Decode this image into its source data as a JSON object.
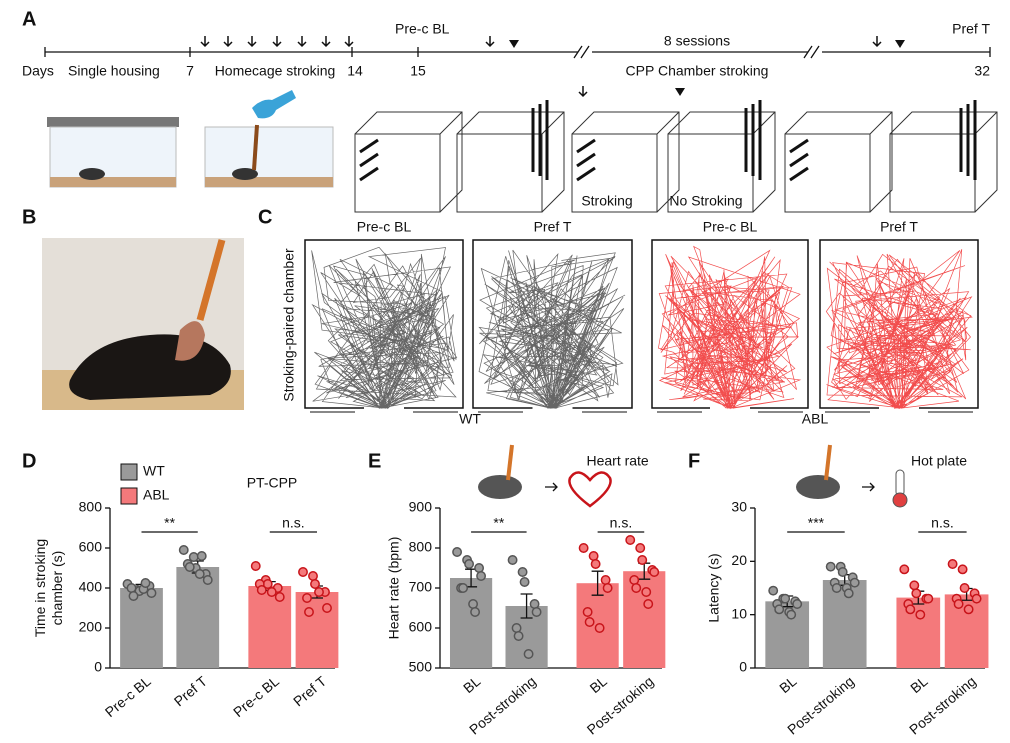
{
  "panel_labels": [
    "A",
    "B",
    "C",
    "D",
    "E",
    "F"
  ],
  "timeline": {
    "days": "Days",
    "single_housing": "Single housing",
    "day7": "7",
    "homecage": "Homecage stroking",
    "day14": "14",
    "prec": "Pre-c BL",
    "day15": "15",
    "sessions": "8 sessions",
    "cpp": "CPP Chamber stroking",
    "preft": "Pref T",
    "day32": "32",
    "stroking": "Stroking",
    "no_stroking": "No Stroking"
  },
  "trajectories": {
    "ylabel": "Stroking-paired chamber",
    "titles": [
      "Pre-c BL",
      "Pref T",
      "Pre-c BL",
      "Pref T"
    ],
    "groups": [
      "WT",
      "ABL"
    ],
    "colors": [
      "#333333",
      "#ee1111"
    ]
  },
  "chart_data": [
    {
      "type": "bar",
      "ylabel": [
        "Time in stroking",
        "chamber (s)"
      ],
      "annotation": "PT-CPP",
      "legend": [
        {
          "name": "WT",
          "color": "#9a9a9a"
        },
        {
          "name": "ABL",
          "color": "#f4797b"
        }
      ],
      "categories": [
        "Pre-c BL",
        "Pref T",
        "Pre-c BL",
        "Pref T"
      ],
      "values": [
        400,
        505,
        410,
        380
      ],
      "errors": [
        18,
        30,
        22,
        30
      ],
      "colors": [
        "#9a9a9a",
        "#9a9a9a",
        "#f4797b",
        "#f4797b"
      ],
      "edge_colors": [
        "#555555",
        "#555555",
        "#c8141a",
        "#c8141a"
      ],
      "points": [
        [
          420,
          390,
          385,
          410,
          375,
          400,
          360,
          395,
          425
        ],
        [
          590,
          555,
          500,
          470,
          440,
          520,
          505,
          470,
          560
        ],
        [
          510,
          440,
          420,
          400,
          355,
          420,
          390,
          380
        ],
        [
          480,
          460,
          420,
          380,
          300,
          350,
          280,
          380
        ]
      ],
      "significance": [
        "**",
        "n.s."
      ],
      "ylim": [
        0,
        800
      ],
      "yticks": [
        0,
        200,
        400,
        600,
        800
      ]
    },
    {
      "type": "bar",
      "ylabel": [
        "Heart rate (bpm)"
      ],
      "annotation": "Heart rate",
      "categories": [
        "BL",
        "Post-stroking",
        "BL",
        "Post-stroking"
      ],
      "values": [
        725,
        655,
        712,
        742
      ],
      "errors": [
        22,
        30,
        30,
        20
      ],
      "colors": [
        "#9a9a9a",
        "#9a9a9a",
        "#f4797b",
        "#f4797b"
      ],
      "edge_colors": [
        "#555555",
        "#555555",
        "#c8141a",
        "#c8141a"
      ],
      "points": [
        [
          790,
          770,
          760,
          750,
          730,
          700,
          700,
          660,
          640
        ],
        [
          770,
          740,
          715,
          660,
          640,
          600,
          580,
          535
        ],
        [
          800,
          780,
          760,
          720,
          700,
          640,
          615,
          600
        ],
        [
          820,
          800,
          770,
          745,
          740,
          720,
          700,
          690,
          660
        ]
      ],
      "significance": [
        "**",
        "n.s."
      ],
      "ylim": [
        500,
        900
      ],
      "yticks": [
        500,
        600,
        700,
        800,
        900
      ]
    },
    {
      "type": "bar",
      "ylabel": [
        "Latency (s)"
      ],
      "annotation": "Hot plate",
      "categories": [
        "BL",
        "Post-stroking",
        "BL",
        "Post-stroking"
      ],
      "values": [
        12.5,
        16.5,
        13.2,
        13.8
      ],
      "errors": [
        1,
        1,
        1.2,
        1.1
      ],
      "colors": [
        "#9a9a9a",
        "#9a9a9a",
        "#f4797b",
        "#f4797b"
      ],
      "edge_colors": [
        "#555555",
        "#555555",
        "#c8141a",
        "#c8141a"
      ],
      "points": [
        [
          14.5,
          13,
          13,
          12.5,
          12,
          12,
          11,
          10.5,
          10
        ],
        [
          19,
          19,
          18,
          17,
          16,
          16,
          15,
          15,
          14
        ],
        [
          18.5,
          15.5,
          14,
          13,
          13,
          12,
          11,
          10
        ],
        [
          19.5,
          18.5,
          15,
          14,
          13,
          13,
          12,
          11
        ]
      ],
      "significance": [
        "***",
        "n.s."
      ],
      "ylim": [
        0,
        30
      ],
      "yticks": [
        0,
        10,
        20,
        30
      ]
    }
  ]
}
